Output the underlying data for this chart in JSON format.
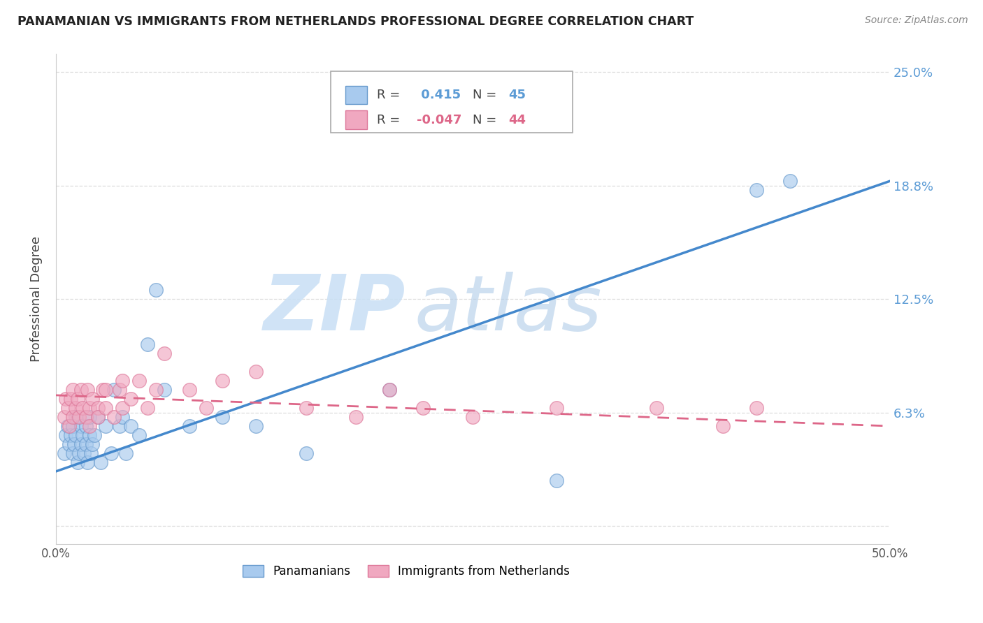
{
  "title": "PANAMANIAN VS IMMIGRANTS FROM NETHERLANDS PROFESSIONAL DEGREE CORRELATION CHART",
  "source": "Source: ZipAtlas.com",
  "ylabel": "Professional Degree",
  "xlim": [
    0.0,
    0.5
  ],
  "ylim": [
    -0.01,
    0.26
  ],
  "blue_R": 0.415,
  "blue_N": 45,
  "pink_R": -0.047,
  "pink_N": 44,
  "blue_color": "#A8CAEE",
  "pink_color": "#F0A8C0",
  "blue_edge_color": "#6699CC",
  "pink_edge_color": "#DD7799",
  "blue_line_color": "#4488CC",
  "pink_line_color": "#DD6688",
  "legend_label_blue": "Panamanians",
  "legend_label_pink": "Immigrants from Netherlands",
  "blue_scatter_x": [
    0.005,
    0.006,
    0.007,
    0.008,
    0.009,
    0.01,
    0.01,
    0.011,
    0.012,
    0.012,
    0.013,
    0.014,
    0.015,
    0.015,
    0.016,
    0.017,
    0.018,
    0.018,
    0.019,
    0.02,
    0.02,
    0.021,
    0.022,
    0.023,
    0.025,
    0.027,
    0.03,
    0.033,
    0.035,
    0.038,
    0.04,
    0.042,
    0.045,
    0.05,
    0.055,
    0.06,
    0.065,
    0.08,
    0.1,
    0.12,
    0.15,
    0.2,
    0.3,
    0.42,
    0.44
  ],
  "blue_scatter_y": [
    0.04,
    0.05,
    0.055,
    0.045,
    0.05,
    0.04,
    0.055,
    0.045,
    0.05,
    0.06,
    0.035,
    0.04,
    0.055,
    0.045,
    0.05,
    0.04,
    0.045,
    0.055,
    0.035,
    0.05,
    0.06,
    0.04,
    0.045,
    0.05,
    0.06,
    0.035,
    0.055,
    0.04,
    0.075,
    0.055,
    0.06,
    0.04,
    0.055,
    0.05,
    0.1,
    0.13,
    0.075,
    0.055,
    0.06,
    0.055,
    0.04,
    0.075,
    0.025,
    0.185,
    0.19
  ],
  "pink_scatter_x": [
    0.005,
    0.006,
    0.007,
    0.008,
    0.009,
    0.01,
    0.01,
    0.012,
    0.013,
    0.014,
    0.015,
    0.016,
    0.018,
    0.019,
    0.02,
    0.02,
    0.022,
    0.025,
    0.025,
    0.028,
    0.03,
    0.03,
    0.035,
    0.038,
    0.04,
    0.04,
    0.045,
    0.05,
    0.055,
    0.06,
    0.065,
    0.08,
    0.09,
    0.1,
    0.12,
    0.15,
    0.18,
    0.2,
    0.22,
    0.25,
    0.3,
    0.36,
    0.4,
    0.42
  ],
  "pink_scatter_y": [
    0.06,
    0.07,
    0.065,
    0.055,
    0.07,
    0.06,
    0.075,
    0.065,
    0.07,
    0.06,
    0.075,
    0.065,
    0.06,
    0.075,
    0.065,
    0.055,
    0.07,
    0.065,
    0.06,
    0.075,
    0.065,
    0.075,
    0.06,
    0.075,
    0.065,
    0.08,
    0.07,
    0.08,
    0.065,
    0.075,
    0.095,
    0.075,
    0.065,
    0.08,
    0.085,
    0.065,
    0.06,
    0.075,
    0.065,
    0.06,
    0.065,
    0.065,
    0.055,
    0.065
  ],
  "blue_line_x0": 0.0,
  "blue_line_y0": 0.03,
  "blue_line_x1": 0.5,
  "blue_line_y1": 0.19,
  "pink_line_x0": 0.0,
  "pink_line_y0": 0.072,
  "pink_line_x1": 0.5,
  "pink_line_y1": 0.055,
  "ytick_positions": [
    0.0,
    0.0625,
    0.125,
    0.1875,
    0.25
  ],
  "ytick_labels": [
    "",
    "6.3%",
    "12.5%",
    "18.8%",
    "25.0%"
  ],
  "grid_color": "#DDDDDD",
  "watermark_zip_color": "#C8DFF5",
  "watermark_atlas_color": "#B0CCE8"
}
